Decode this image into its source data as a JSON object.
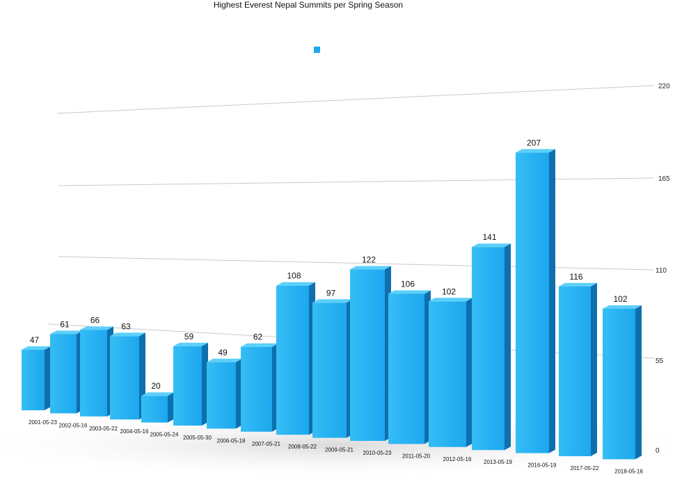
{
  "chart_data": {
    "type": "bar",
    "title": "Highest Everest Nepal Summits per Spring Season",
    "categories": [
      "2001-05-23",
      "2002-05-16",
      "2003-05-22",
      "2004-05-16",
      "2005-05-24",
      "2005-05-30",
      "2006-05-18",
      "2007-05-21",
      "2008-05-22",
      "2009-05-21",
      "2010-05-23",
      "2011-05-20",
      "2012-05-16",
      "2013-05-19",
      "2016-05-19",
      "2017-05-22",
      "2018-05-16"
    ],
    "series": [
      {
        "values": [
          47,
          61,
          66,
          63,
          20,
          59,
          49,
          62,
          108,
          97,
          122,
          106,
          102,
          141,
          207,
          116,
          102
        ]
      }
    ],
    "ylim": [
      0,
      220
    ],
    "yticks": [
      "0",
      "55",
      "110",
      "165",
      "220"
    ],
    "grid": true,
    "legend": "top-center",
    "bar_color": "#1da7ee",
    "bar_top_color": "#5cd0fa",
    "bar_side_color": "#0e6fae",
    "grid_color": "#c9c9c9",
    "show_data_labels": true
  }
}
